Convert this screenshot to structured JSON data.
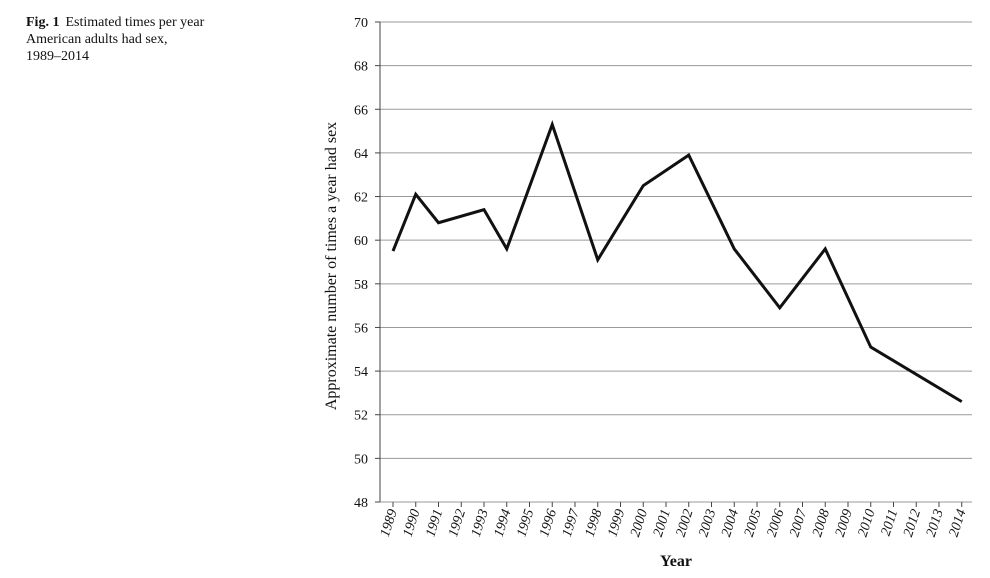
{
  "caption": {
    "label": "Fig. 1",
    "text_line1": "Estimated times per year",
    "text_line2": "American adults had sex,",
    "text_line3": "1989–2014"
  },
  "chart_data": {
    "type": "line",
    "xlabel": "Year",
    "ylabel": "Approximate number of times a year had sex",
    "ylim": [
      48,
      70
    ],
    "yticks": [
      48,
      50,
      52,
      54,
      56,
      58,
      60,
      62,
      64,
      66,
      68,
      70
    ],
    "grid": "horizontal",
    "categories": [
      "1989",
      "1990",
      "1991",
      "1992",
      "1993",
      "1994",
      "1995",
      "1996",
      "1997",
      "1998",
      "1999",
      "2000",
      "2001",
      "2002",
      "2003",
      "2004",
      "2005",
      "2006",
      "2007",
      "2008",
      "2009",
      "2010",
      "2011",
      "2012",
      "2013",
      "2014"
    ],
    "points": [
      {
        "x": "1989",
        "y": 59.5
      },
      {
        "x": "1990",
        "y": 62.1
      },
      {
        "x": "1991",
        "y": 60.8
      },
      {
        "x": "1993",
        "y": 61.4
      },
      {
        "x": "1994",
        "y": 59.6
      },
      {
        "x": "1996",
        "y": 65.3
      },
      {
        "x": "1998",
        "y": 59.1
      },
      {
        "x": "2000",
        "y": 62.5
      },
      {
        "x": "2002",
        "y": 63.9
      },
      {
        "x": "2004",
        "y": 59.6
      },
      {
        "x": "2006",
        "y": 56.9
      },
      {
        "x": "2008",
        "y": 59.6
      },
      {
        "x": "2010",
        "y": 55.1
      },
      {
        "x": "2014",
        "y": 52.6
      }
    ]
  }
}
